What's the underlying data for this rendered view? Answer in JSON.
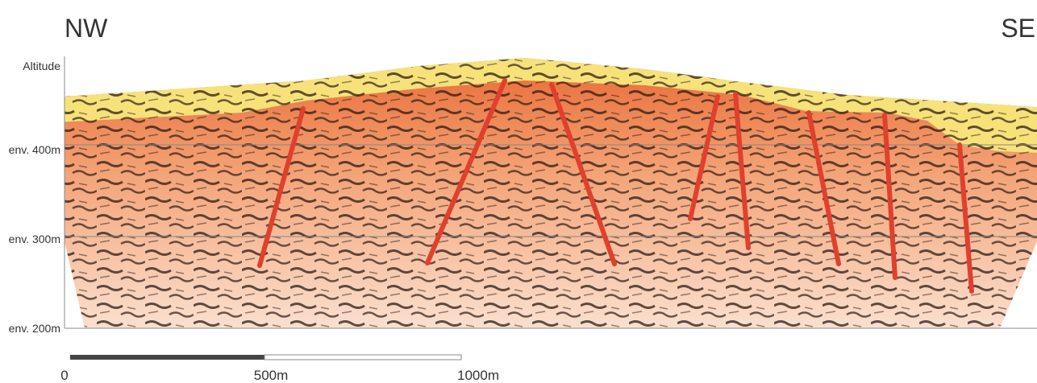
{
  "labels": {
    "left": "NW",
    "right": "SE"
  },
  "axis": {
    "title": "Altitude",
    "ticks": [
      "env. 400m",
      "env. 300m",
      "env. 200m"
    ]
  },
  "scale_bar": {
    "labels": [
      "0",
      "500m",
      "1000m"
    ]
  }
}
